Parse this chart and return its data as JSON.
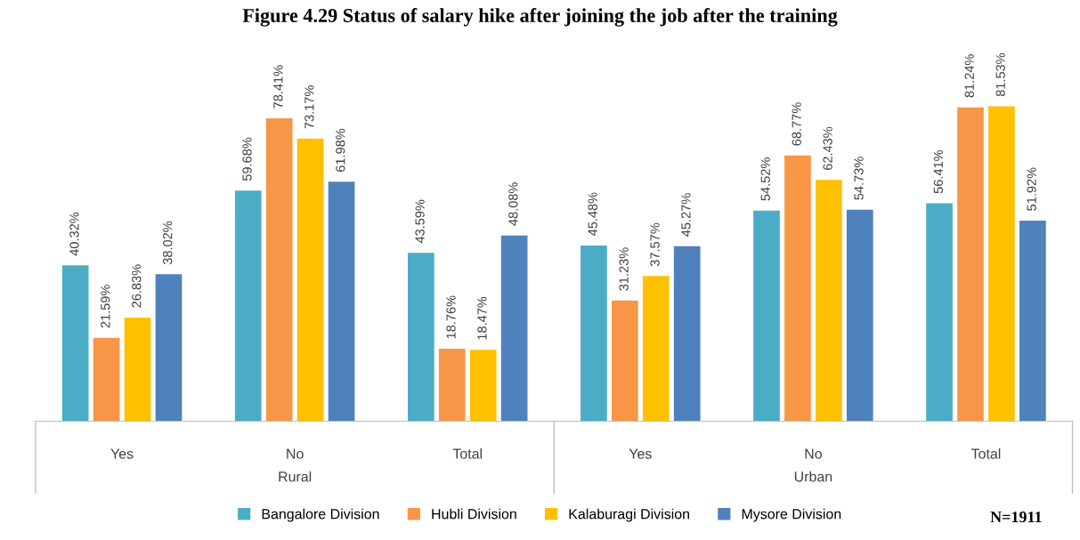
{
  "chart_data": {
    "type": "bar",
    "title": "Figure 4.29 Status of salary hike after joining the job after the training",
    "categories": [
      "Yes",
      "No",
      "Total",
      "Yes",
      "No",
      "Total"
    ],
    "series": [
      {
        "name": "Bangalore Division",
        "color": "#4bacc6",
        "values": [
          40.32,
          59.68,
          43.59,
          45.48,
          54.52,
          56.41
        ],
        "value_labels": [
          "40.32%",
          "59.68%",
          "43.59%",
          "45.48%",
          "54.52%",
          "56.41%"
        ]
      },
      {
        "name": "Hubli Division",
        "color": "#f79646",
        "values": [
          21.59,
          78.41,
          18.76,
          31.23,
          68.77,
          81.24
        ],
        "value_labels": [
          "21.59%",
          "78.41%",
          "18.76%",
          "31.23%",
          "68.77%",
          "81.24%"
        ]
      },
      {
        "name": "Kalaburagi Division",
        "color": "#ffc000",
        "values": [
          26.83,
          73.17,
          18.47,
          37.57,
          62.43,
          81.53
        ],
        "value_labels": [
          "26.83%",
          "73.17%",
          "18.47%",
          "37.57%",
          "62.43%",
          "81.53%"
        ]
      },
      {
        "name": "Mysore Division",
        "color": "#4f81bd",
        "values": [
          38.02,
          61.98,
          48.08,
          45.27,
          54.73,
          51.92
        ],
        "value_labels": [
          "38.02%",
          "61.98%",
          "48.08%",
          "45.27%",
          "54.73%",
          "51.92%"
        ]
      }
    ],
    "legend": "bottom",
    "annotations": [
      "Rural",
      "Urban",
      "N=1911"
    ]
  }
}
